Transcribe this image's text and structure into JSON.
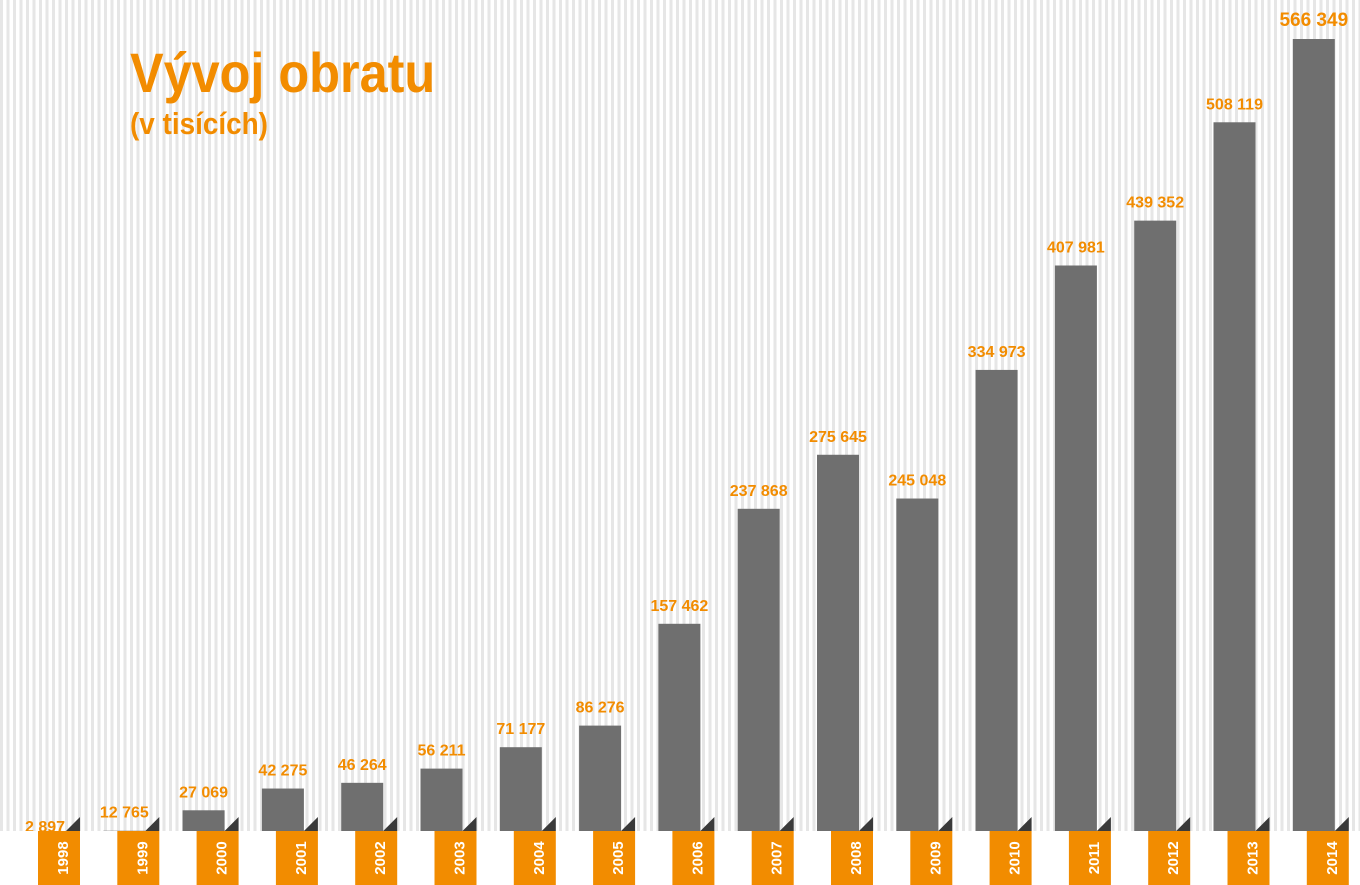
{
  "chart_data": {
    "type": "bar",
    "title": "Vývoj obratu",
    "subtitle": "(v tisících)",
    "categories": [
      "1998",
      "1999",
      "2000",
      "2001",
      "2002",
      "2003",
      "2004",
      "2005",
      "2006",
      "2007",
      "2008",
      "2009",
      "2010",
      "2011",
      "2012",
      "2013",
      "2014"
    ],
    "values": [
      2897,
      12765,
      27069,
      42275,
      46264,
      56211,
      71177,
      86276,
      157462,
      237868,
      275645,
      245048,
      334973,
      407981,
      439352,
      508119,
      566349
    ],
    "value_labels": [
      "2 897",
      "12 765",
      "27 069",
      "42 275",
      "46 264",
      "56 211",
      "71 177",
      "86 276",
      "157 462",
      "237 868",
      "275 645",
      "245 048",
      "334 973",
      "407 981",
      "439 352",
      "508 119",
      "566 349"
    ],
    "color": "#6f6f6f",
    "label_color": "#f28c00"
  }
}
